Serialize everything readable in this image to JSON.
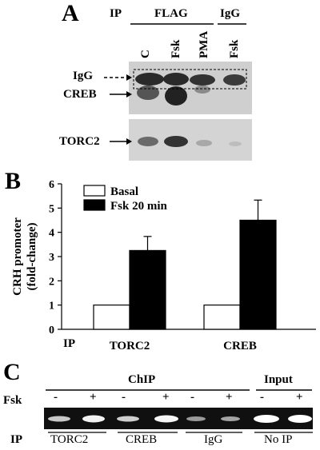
{
  "panelA": {
    "letter": "A",
    "ip_label": "IP",
    "group_flag": "FLAG",
    "group_igg": "IgG",
    "lanes": [
      "C",
      "Fsk",
      "PMA",
      "Fsk"
    ],
    "band_igg": "IgG",
    "band_creb": "CREB",
    "band_torc2": "TORC2"
  },
  "panelB": {
    "letter": "B",
    "ip_label": "IP"
  },
  "chart_data": {
    "type": "bar",
    "categories": [
      "TORC2",
      "CREB"
    ],
    "series": [
      {
        "name": "Basal",
        "values": [
          1.0,
          1.0
        ],
        "errors": [
          0,
          0
        ],
        "color": "#ffffff"
      },
      {
        "name": "Fsk 20 min",
        "values": [
          3.25,
          4.5
        ],
        "errors": [
          0.58,
          0.83
        ],
        "color": "#000000"
      }
    ],
    "ylabel_line1": "CRH promoter",
    "ylabel_line2": "(fold-change)",
    "ylim": [
      0,
      6
    ],
    "yticks": [
      "0",
      "1",
      "2",
      "3",
      "4",
      "5",
      "6"
    ],
    "legend_position": "top-left",
    "grid": false
  },
  "panelC": {
    "letter": "C",
    "chip_label": "ChIP",
    "input_label": "Input",
    "fsk_label": "Fsk",
    "signs": [
      "-",
      "+",
      "-",
      "+",
      "-",
      "+",
      "-",
      "+"
    ],
    "ip_label": "IP",
    "groups": [
      "TORC2",
      "CREB",
      "IgG",
      "No IP"
    ]
  }
}
